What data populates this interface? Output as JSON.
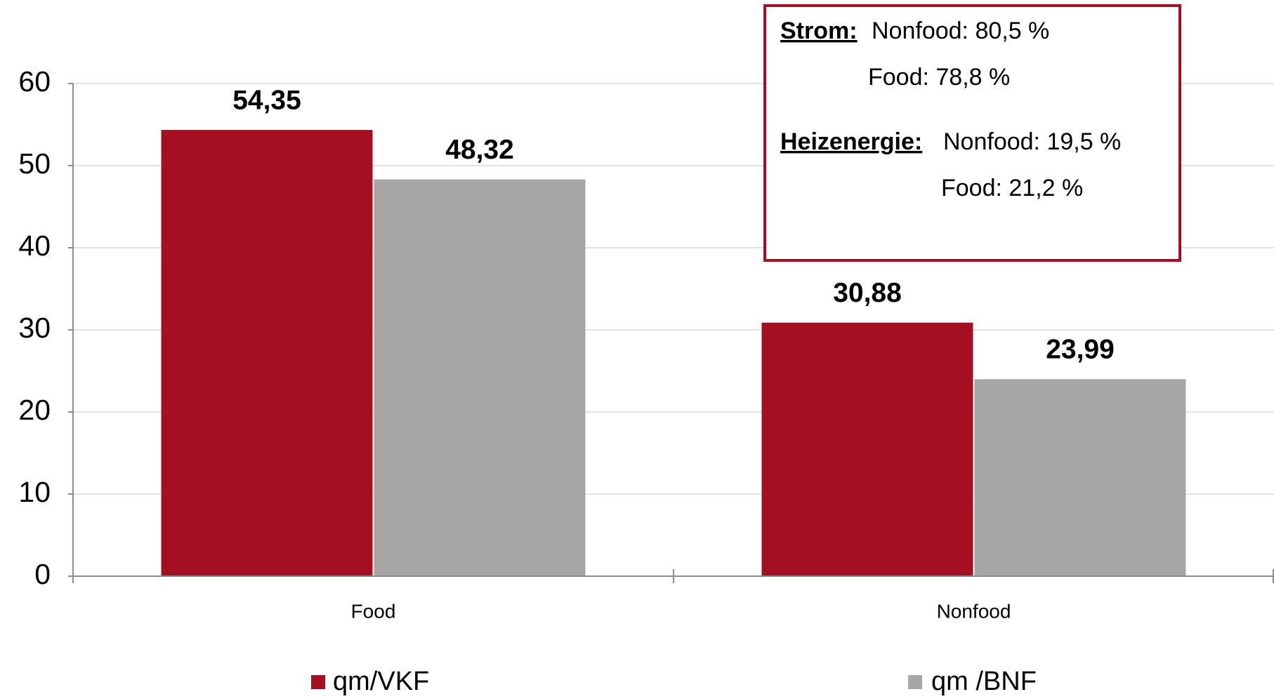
{
  "chart_data": {
    "type": "bar",
    "categories": [
      "Food",
      "Nonfood"
    ],
    "series": [
      {
        "name": "qm/VKF",
        "color": "#a50f22",
        "values": [
          54.35,
          30.88
        ],
        "value_labels": [
          "54,35",
          "30,88"
        ]
      },
      {
        "name": "qm /BNF",
        "color": "#a6a6a6",
        "values": [
          48.32,
          23.99
        ],
        "value_labels": [
          "48,32",
          "23,99"
        ]
      }
    ],
    "ylim": [
      0,
      60
    ],
    "yticks": [
      0,
      10,
      20,
      30,
      40,
      50,
      60
    ],
    "grid": true,
    "annotation": {
      "lines": [
        {
          "label": "Strom:",
          "text": "Nonfood: 80,5 %"
        },
        {
          "text": "Food: 78,8 %"
        },
        {
          "label": "Heizenergie:",
          "text": "Nonfood: 19,5 %"
        },
        {
          "text": "Food: 21,2 %"
        }
      ]
    }
  }
}
